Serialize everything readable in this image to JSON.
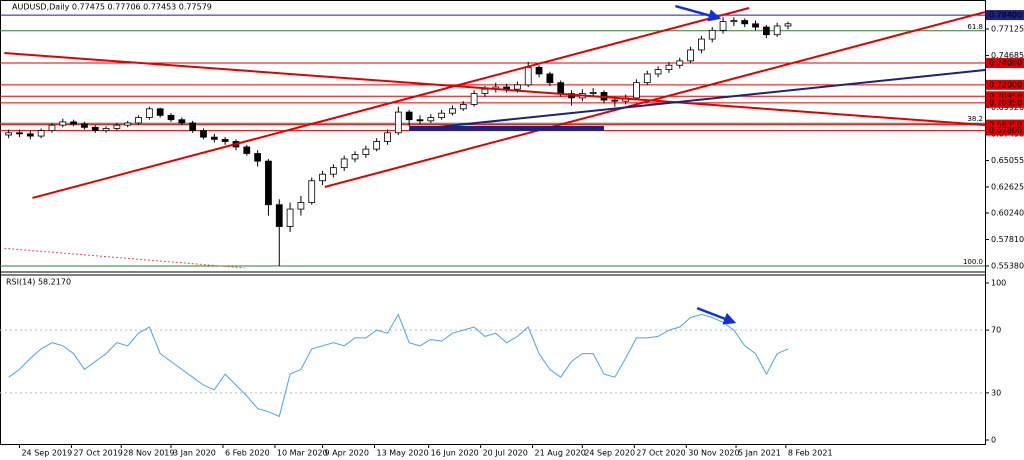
{
  "chart_data": {
    "type": "candlestick",
    "title": "AUDUSD,Daily  0.77475 0.77706 0.77453 0.77579",
    "x": [
      4,
      9,
      14,
      19,
      24,
      29,
      34,
      39,
      44,
      49,
      54,
      59,
      64,
      69,
      74,
      79,
      84,
      89,
      94,
      99,
      104,
      109,
      114,
      119,
      124,
      129,
      134,
      139,
      144,
      149,
      154,
      159,
      164,
      169,
      174,
      179,
      184,
      189,
      194,
      199,
      204,
      209,
      214,
      219,
      224,
      229,
      234,
      239,
      244,
      249,
      254,
      259,
      264,
      269,
      274,
      279,
      284,
      289,
      294,
      299,
      304,
      309,
      314,
      319,
      324,
      329,
      334,
      339,
      344,
      349,
      354,
      359,
      364
    ],
    "open": [
      0.674,
      0.676,
      0.675,
      0.673,
      0.678,
      0.683,
      0.686,
      0.684,
      0.681,
      0.678,
      0.68,
      0.683,
      0.685,
      0.69,
      0.698,
      0.692,
      0.688,
      0.685,
      0.678,
      0.672,
      0.67,
      0.668,
      0.663,
      0.657,
      0.65,
      0.61,
      0.59,
      0.606,
      0.612,
      0.632,
      0.638,
      0.644,
      0.652,
      0.656,
      0.661,
      0.668,
      0.676,
      0.695,
      0.688,
      0.687,
      0.69,
      0.694,
      0.698,
      0.702,
      0.712,
      0.716,
      0.718,
      0.716,
      0.72,
      0.736,
      0.73,
      0.722,
      0.712,
      0.708,
      0.712,
      0.713,
      0.706,
      0.705,
      0.708,
      0.722,
      0.73,
      0.734,
      0.738,
      0.742,
      0.752,
      0.762,
      0.77,
      0.778,
      0.779,
      0.776,
      0.773,
      0.766,
      0.774
    ],
    "high": [
      0.679,
      0.679,
      0.678,
      0.68,
      0.685,
      0.689,
      0.688,
      0.686,
      0.683,
      0.682,
      0.685,
      0.687,
      0.692,
      0.7,
      0.699,
      0.694,
      0.69,
      0.687,
      0.68,
      0.675,
      0.672,
      0.67,
      0.665,
      0.66,
      0.652,
      0.615,
      0.612,
      0.618,
      0.635,
      0.641,
      0.647,
      0.655,
      0.659,
      0.664,
      0.671,
      0.679,
      0.7,
      0.697,
      0.692,
      0.693,
      0.697,
      0.701,
      0.705,
      0.715,
      0.719,
      0.722,
      0.721,
      0.723,
      0.741,
      0.738,
      0.732,
      0.724,
      0.715,
      0.716,
      0.717,
      0.715,
      0.709,
      0.711,
      0.725,
      0.733,
      0.737,
      0.741,
      0.745,
      0.755,
      0.765,
      0.773,
      0.782,
      0.782,
      0.781,
      0.779,
      0.775,
      0.777,
      0.778
    ],
    "low": [
      0.671,
      0.672,
      0.67,
      0.671,
      0.676,
      0.681,
      0.682,
      0.679,
      0.676,
      0.676,
      0.678,
      0.681,
      0.683,
      0.688,
      0.69,
      0.686,
      0.683,
      0.676,
      0.67,
      0.667,
      0.665,
      0.66,
      0.655,
      0.645,
      0.6,
      0.5538,
      0.585,
      0.6,
      0.61,
      0.628,
      0.635,
      0.641,
      0.649,
      0.653,
      0.659,
      0.665,
      0.674,
      0.682,
      0.684,
      0.685,
      0.688,
      0.692,
      0.696,
      0.7,
      0.709,
      0.713,
      0.713,
      0.713,
      0.718,
      0.727,
      0.719,
      0.709,
      0.701,
      0.705,
      0.709,
      0.703,
      0.7,
      0.702,
      0.706,
      0.72,
      0.727,
      0.731,
      0.735,
      0.74,
      0.749,
      0.759,
      0.767,
      0.774,
      0.773,
      0.77,
      0.763,
      0.764,
      0.771
    ],
    "close": [
      0.676,
      0.675,
      0.673,
      0.678,
      0.683,
      0.686,
      0.684,
      0.681,
      0.678,
      0.68,
      0.683,
      0.685,
      0.69,
      0.698,
      0.692,
      0.688,
      0.685,
      0.678,
      0.672,
      0.67,
      0.668,
      0.663,
      0.657,
      0.65,
      0.61,
      0.59,
      0.606,
      0.612,
      0.632,
      0.638,
      0.644,
      0.652,
      0.656,
      0.661,
      0.668,
      0.676,
      0.695,
      0.688,
      0.687,
      0.69,
      0.694,
      0.698,
      0.702,
      0.712,
      0.716,
      0.718,
      0.716,
      0.72,
      0.736,
      0.73,
      0.722,
      0.712,
      0.708,
      0.712,
      0.713,
      0.706,
      0.705,
      0.708,
      0.722,
      0.73,
      0.734,
      0.738,
      0.742,
      0.752,
      0.762,
      0.77,
      0.778,
      0.779,
      0.776,
      0.773,
      0.766,
      0.774,
      0.776
    ],
    "xlim": [
      0,
      455
    ],
    "ylim": [
      0.5501,
      0.7905
    ],
    "xticks": [
      {
        "value": 9,
        "label": "24 Sep 2019"
      },
      {
        "value": 33,
        "label": "27 Oct 2019"
      },
      {
        "value": 56,
        "label": "28 Nov 2019"
      },
      {
        "value": 79,
        "label": "3 Jan 2020"
      },
      {
        "value": 103,
        "label": "6 Feb 2020"
      },
      {
        "value": 127,
        "label": "10 Mar 2020"
      },
      {
        "value": 149,
        "label": "9 Apr 2020"
      },
      {
        "value": 173,
        "label": "13 May 2020"
      },
      {
        "value": 198,
        "label": "16 Jun 2020"
      },
      {
        "value": 222,
        "label": "20 Jul 2020"
      },
      {
        "value": 246,
        "label": "21 Aug 2020"
      },
      {
        "value": 269,
        "label": "24 Sep 2020"
      },
      {
        "value": 293,
        "label": "27 Oct 2020"
      },
      {
        "value": 317,
        "label": "30 Nov 2020"
      },
      {
        "value": 340,
        "label": "5 Jan 2021"
      },
      {
        "value": 363,
        "label": "8 Feb 2021"
      }
    ],
    "yticks": [
      {
        "value": 0.5538,
        "label": "0.55380"
      },
      {
        "value": 0.5781,
        "label": "0.57810"
      },
      {
        "value": 0.6024,
        "label": "0.60240"
      },
      {
        "value": 0.62625,
        "label": "0.62625"
      },
      {
        "value": 0.65055,
        "label": "0.65055"
      },
      {
        "value": 0.6749,
        "label": "0.67490"
      },
      {
        "value": 0.6992,
        "label": "0.69920"
      },
      {
        "value": 0.74685,
        "label": "0.74685"
      },
      {
        "value": 0.77125,
        "label": "0.77125"
      }
    ],
    "levels": [
      {
        "value": 0.784,
        "label": "0.78400",
        "color": "#1a237e"
      },
      {
        "value": 0.74,
        "label": "0.74000",
        "color": "#e00000"
      },
      {
        "value": 0.72,
        "label": "0.72000",
        "color": "#e00000"
      },
      {
        "value": 0.7095,
        "label": "0.70950",
        "color": "#e00000"
      },
      {
        "value": 0.7035,
        "label": "0.70350",
        "color": "#e00000"
      },
      {
        "value": 0.6835,
        "label": "0.68350",
        "color": "#e00000"
      },
      {
        "value": 0.678,
        "label": "0.67800",
        "color": "#e00000"
      }
    ],
    "fib_levels": [
      {
        "value": 0.7696,
        "label": "61.8"
      },
      {
        "value": 0.6848,
        "label": "38.2"
      },
      {
        "value": 0.5538,
        "label": "100.0"
      }
    ],
    "fib_color": "#2e7d32",
    "drawings": [
      {
        "x1": 15,
        "y1": 0.6162,
        "x2": 346,
        "y2": 0.7905,
        "color": "#e00000",
        "width": 2
      },
      {
        "x1": 150,
        "y1": 0.6263,
        "x2": 455,
        "y2": 0.7868,
        "color": "#e00000",
        "width": 2
      },
      {
        "x1": 2,
        "y1": 0.7492,
        "x2": 455,
        "y2": 0.6832,
        "color": "#e00000",
        "width": 2
      },
      {
        "x1": 189,
        "y1": 0.6786,
        "x2": 455,
        "y2": 0.7336,
        "color": "#1a237e",
        "width": 2
      },
      {
        "x1": 189,
        "y1": 0.68,
        "x2": 279,
        "y2": 0.68,
        "color": "#1a237e",
        "width": 5
      },
      {
        "x1": 2,
        "y1": 0.57,
        "x2": 113,
        "y2": 0.552,
        "color": "#e05050",
        "width": 1,
        "dash": true
      },
      {
        "x1": 312,
        "y1": 0.7923,
        "x2": 332,
        "y2": 0.7813,
        "color": "#1030e0",
        "width": 2.5,
        "arrow": true
      }
    ],
    "rsi": {
      "title": "RSI(14) 58.2170",
      "color": "#4da3e0",
      "ylim": [
        0,
        100
      ],
      "yticks": [
        0,
        30,
        70,
        100
      ],
      "levels": [
        30,
        70
      ],
      "values": [
        40,
        45,
        52,
        58,
        62,
        60,
        55,
        45,
        50,
        55,
        62,
        60,
        68,
        72,
        55,
        50,
        45,
        40,
        35,
        32,
        42,
        35,
        28,
        20,
        18,
        15,
        42,
        45,
        58,
        60,
        62,
        60,
        65,
        65,
        70,
        68,
        80,
        62,
        60,
        64,
        63,
        68,
        70,
        72,
        66,
        68,
        62,
        66,
        72,
        55,
        45,
        40,
        50,
        55,
        55,
        42,
        40,
        52,
        65,
        65,
        66,
        70,
        72,
        78,
        80,
        78,
        75,
        70,
        60,
        55,
        42,
        55,
        58
      ],
      "drawings": [
        {
          "x1": 322,
          "y1": 84,
          "x2": 339,
          "y2": 75,
          "color": "#1030e0",
          "width": 2.5,
          "arrow": true
        }
      ]
    }
  }
}
